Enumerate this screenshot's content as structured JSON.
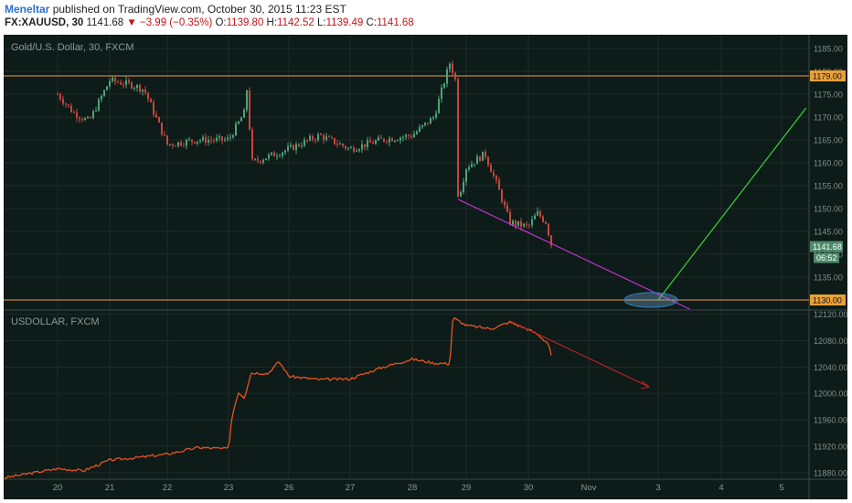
{
  "header": {
    "author": "Meneltar",
    "published_text": "published on TradingView.com, October 30, 2015 11:23 EST",
    "symbol": "FX:XAUUSD, 30",
    "last": "1141.68",
    "change": "−3.99 (−0.35%)",
    "o_label": "O:",
    "o_value": "1139.80",
    "h_label": "H:",
    "h_value": "1142.52",
    "l_label": "L:",
    "l_value": "1139.49",
    "c_label": "C:",
    "c_value": "1141.68"
  },
  "colors": {
    "background": "#0d1b19",
    "grid": "#1e2b29",
    "horizontal_level": "#e8a03a",
    "trend_magenta": "#c832d6",
    "projection_green": "#3ed23a",
    "usdollar_line": "#e8541c",
    "usdollar_trend": "#c62222",
    "last_price_badge": "#4d8a6a",
    "ellipse": "#2a78b8"
  },
  "chart_data": [
    {
      "type": "candlestick",
      "title": "Gold/U.S. Dollar, 30, FXCM",
      "x_ticks": [
        "20",
        "21",
        "22",
        "23",
        "26",
        "27",
        "28",
        "29",
        "30",
        "Nov",
        "3",
        "4",
        "5"
      ],
      "y_ticks": [
        "1185.00",
        "1180.00",
        "1175.00",
        "1170.00",
        "1165.00",
        "1160.00",
        "1155.00",
        "1150.00",
        "1145.00",
        "1140.00",
        "1135.00"
      ],
      "ylim": [
        1128,
        1188
      ],
      "grid": true,
      "levels": [
        {
          "value": 1179.0,
          "label": "1179.00"
        },
        {
          "value": 1130.0,
          "label": "1130.00"
        }
      ],
      "last_price": {
        "value": 1141.68,
        "label": "1141.68",
        "countdown": "06:52"
      },
      "close_path": [
        [
          "20",
          1175
        ],
        [
          "20.3",
          1171
        ],
        [
          "20.6",
          1169
        ],
        [
          "21",
          1178
        ],
        [
          "21.4",
          1177
        ],
        [
          "21.6",
          1176
        ],
        [
          "22",
          1164
        ],
        [
          "22.5",
          1165
        ],
        [
          "23",
          1165
        ],
        [
          "23.5",
          1171
        ],
        [
          "23.6",
          1178
        ],
        [
          "23.7",
          1160
        ],
        [
          "26",
          1163
        ],
        [
          "26.5",
          1166
        ],
        [
          "27",
          1163
        ],
        [
          "27.5",
          1165
        ],
        [
          "28",
          1166
        ],
        [
          "28.4",
          1170
        ],
        [
          "28.6",
          1178
        ],
        [
          "28.7",
          1182
        ],
        [
          "28.8",
          1178
        ],
        [
          "28.85",
          1152
        ],
        [
          "29",
          1159
        ],
        [
          "29.3",
          1162
        ],
        [
          "29.5",
          1155
        ],
        [
          "29.7",
          1147
        ],
        [
          "30",
          1146
        ],
        [
          "30.3",
          1149
        ],
        [
          "30.6",
          1147
        ],
        [
          "30.8",
          1141.68
        ]
      ],
      "lines": [
        {
          "name": "",
          "color": "magenta",
          "from": [
            "28.85",
            1152
          ],
          "to": [
            "3.5",
            1128
          ]
        },
        {
          "name": "",
          "color": "green",
          "from": [
            "3",
            1130
          ],
          "to": [
            "5.4",
            1172
          ]
        }
      ],
      "annotation": {
        "type": "ellipse",
        "at": [
          "3",
          1130
        ]
      }
    },
    {
      "type": "line",
      "title": "USDOLLAR, FXCM",
      "x_ticks": [
        "20",
        "21",
        "22",
        "23",
        "26",
        "27",
        "28",
        "29",
        "30",
        "Nov",
        "3",
        "4",
        "5"
      ],
      "y_ticks": [
        "12120.00",
        "12080.00",
        "12040.00",
        "12000.00",
        "11960.00",
        "11920.00",
        "11880.00"
      ],
      "ylim": [
        11870,
        12125
      ],
      "grid": true,
      "values": [
        [
          "19.5",
          11872
        ],
        [
          "20",
          11886
        ],
        [
          "20.5",
          11883
        ],
        [
          "21",
          11899
        ],
        [
          "21.5",
          11903
        ],
        [
          "22",
          11908
        ],
        [
          "22.5",
          11918
        ],
        [
          "23",
          11916
        ],
        [
          "23.1",
          11963
        ],
        [
          "23.3",
          12002
        ],
        [
          "23.5",
          11994
        ],
        [
          "23.7",
          12031
        ],
        [
          "24",
          12031
        ],
        [
          "24.4",
          12030
        ],
        [
          "25",
          12048
        ],
        [
          "25.5",
          12038
        ],
        [
          "26",
          12026
        ],
        [
          "26.5",
          12021
        ],
        [
          "27",
          12022
        ],
        [
          "27.5",
          12039
        ],
        [
          "28",
          12052
        ],
        [
          "28.4",
          12046
        ],
        [
          "28.7",
          12045
        ],
        [
          "28.75",
          12115
        ],
        [
          "29",
          12103
        ],
        [
          "29.4",
          12098
        ],
        [
          "29.7",
          12108
        ],
        [
          "30",
          12097
        ],
        [
          "30.3",
          12090
        ],
        [
          "30.7",
          12075
        ],
        [
          "30.8",
          12052
        ]
      ],
      "lines": [
        {
          "name": "",
          "color": "red",
          "from": [
            "29.7",
            12110
          ],
          "to": [
            "3.0",
            12010
          ]
        }
      ]
    }
  ]
}
